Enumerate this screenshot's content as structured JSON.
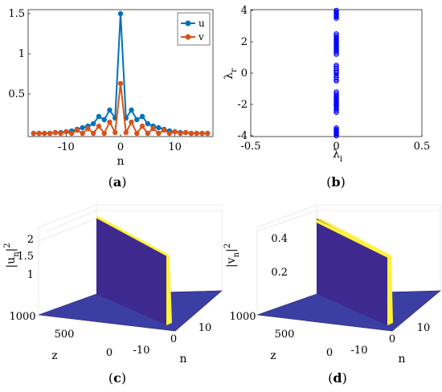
{
  "colors": {
    "u": "#0072BD",
    "v": "#D95319",
    "eig": "#0000FF",
    "surface_dark": "#3E2A8F",
    "surface_mid": "#3B3FA3",
    "surface_peak": "#FFF23A",
    "surface_edge": "#2C1E70"
  },
  "chart_data": [
    {
      "id": "a",
      "panel_label": "a",
      "type": "line",
      "xlabel": "n",
      "ylabel": "",
      "xlim": [
        -17,
        17
      ],
      "ylim": [
        0,
        1.5
      ],
      "xticks": [
        -10,
        0,
        10
      ],
      "xtick_labels": [
        "-10",
        "0",
        "10"
      ],
      "yticks": [
        0.5,
        1,
        1.5
      ],
      "ytick_labels": [
        "0.5",
        "1",
        "1.5"
      ],
      "legend": "top-right",
      "x": [
        -16,
        -15,
        -14,
        -13,
        -12,
        -11,
        -10,
        -9,
        -8,
        -7,
        -6,
        -5,
        -4,
        -3,
        -2,
        -1,
        0,
        1,
        2,
        3,
        4,
        5,
        6,
        7,
        8,
        9,
        10,
        11,
        12,
        13,
        14,
        15,
        16
      ],
      "series": [
        {
          "name": "u",
          "color_key": "u",
          "values": [
            0.01,
            0.01,
            0.01,
            0.01,
            0.02,
            0.02,
            0.03,
            0.04,
            0.06,
            0.08,
            0.1,
            0.13,
            0.22,
            0.18,
            0.3,
            0.2,
            1.5,
            0.2,
            0.3,
            0.18,
            0.22,
            0.13,
            0.1,
            0.08,
            0.06,
            0.04,
            0.03,
            0.02,
            0.02,
            0.01,
            0.01,
            0.01,
            0.01
          ]
        },
        {
          "name": "v",
          "color_key": "v",
          "values": [
            0.01,
            0.01,
            0.01,
            0.01,
            0.02,
            0.01,
            0.03,
            0.01,
            0.05,
            0.01,
            0.07,
            0.01,
            0.1,
            0.01,
            0.15,
            0.02,
            0.63,
            0.02,
            0.15,
            0.01,
            0.1,
            0.01,
            0.07,
            0.01,
            0.05,
            0.01,
            0.03,
            0.01,
            0.02,
            0.01,
            0.01,
            0.01,
            0.01
          ]
        }
      ]
    },
    {
      "id": "b",
      "panel_label": "b",
      "type": "scatter",
      "xlabel_main": "λ",
      "xlabel_sub": "i",
      "ylabel_main": "λ",
      "ylabel_sub": "r",
      "xlim": [
        -0.5,
        0.5
      ],
      "ylim": [
        -4,
        4
      ],
      "xticks": [
        -0.5,
        0,
        0.5
      ],
      "xtick_labels": [
        "-0.5",
        "0",
        "0.5"
      ],
      "yticks": [
        -4,
        -2,
        0,
        2,
        4
      ],
      "ytick_labels": [
        "-4",
        "-2",
        "0",
        "2",
        "4"
      ],
      "x": [
        0,
        0,
        0,
        0,
        0,
        0,
        0,
        0,
        0,
        0,
        0,
        0,
        0,
        0,
        0,
        0,
        0,
        0,
        0,
        0,
        0,
        0,
        0,
        0,
        0,
        0,
        0,
        0,
        0,
        0,
        0,
        0,
        0,
        0,
        0,
        0,
        0,
        0,
        0,
        0,
        0,
        0,
        0,
        0,
        0,
        0,
        0,
        0,
        0,
        0,
        0,
        0,
        0,
        0,
        0,
        0,
        0,
        0,
        0,
        0
      ],
      "y": [
        -4.0,
        -3.9,
        -3.8,
        -3.7,
        -3.6,
        -3.5,
        -2.5,
        -2.4,
        -2.3,
        -2.2,
        -2.1,
        -2.0,
        -1.9,
        -1.8,
        -1.7,
        -1.6,
        -1.5,
        -1.4,
        -1.3,
        -1.2,
        -0.5,
        -0.4,
        -0.3,
        -0.15,
        0.0,
        0.15,
        0.3,
        0.4,
        0.5,
        1.2,
        1.3,
        1.4,
        1.5,
        1.6,
        1.7,
        1.8,
        1.9,
        2.0,
        2.1,
        2.2,
        2.3,
        2.4,
        2.5,
        3.5,
        3.6,
        3.7,
        3.8,
        3.9,
        4.0,
        -3.85,
        -3.65,
        -2.05,
        -1.85,
        -1.65,
        1.65,
        1.85,
        2.05,
        3.65,
        3.85,
        0.05
      ]
    },
    {
      "id": "c",
      "panel_label": "c",
      "type": "surface",
      "zlabel": "|u_n|^2",
      "zlabel_main": "|u",
      "zlabel_sub": "n",
      "zlabel_bar": "|",
      "zlabel_sup": "2",
      "xlabel": "n",
      "ylabel": "z",
      "n_ticks": [
        "-10",
        "0",
        "10"
      ],
      "z_ticks": [
        "0",
        "500",
        "1000"
      ],
      "v_ticks": [
        "1",
        "1.5",
        "2"
      ],
      "vlim": [
        0,
        2.25
      ],
      "peak": 2.25
    },
    {
      "id": "d",
      "panel_label": "d",
      "type": "surface",
      "zlabel": "|v_n|^2",
      "zlabel_main": "|v",
      "zlabel_sub": "n",
      "zlabel_bar": "|",
      "zlabel_sup": "2",
      "xlabel": "n",
      "ylabel": "z",
      "n_ticks": [
        "-10",
        "0",
        "10"
      ],
      "z_ticks": [
        "0",
        "500",
        "1000"
      ],
      "v_ticks": [
        "0.2",
        "0.4"
      ],
      "vlim": [
        0,
        0.4
      ],
      "peak": 0.4
    }
  ]
}
